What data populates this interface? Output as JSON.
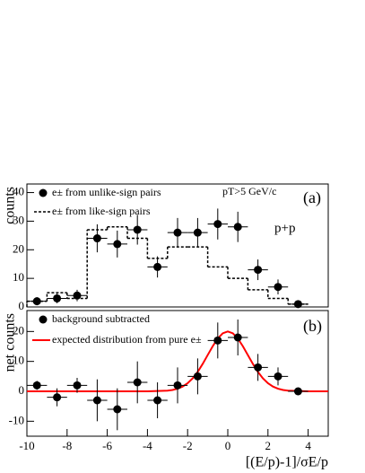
{
  "chart_data": [
    {
      "type": "scatter",
      "ylabel": "counts",
      "annotations": [
        "pT>5 GeV/c",
        "(a)",
        "p+p"
      ],
      "xlim": [
        -10,
        5
      ],
      "ylim": [
        0,
        43
      ],
      "yticks": [
        0,
        10,
        20,
        30,
        40
      ],
      "xerr": 0.5,
      "series": [
        {
          "name": "e± from unlike-sign pairs",
          "color": "#000000",
          "x": [
            -9.5,
            -8.5,
            -7.5,
            -6.5,
            -5.5,
            -4.5,
            -3.5,
            -2.5,
            -1.5,
            -0.5,
            0.5,
            1.5,
            2.5,
            3.5
          ],
          "values": [
            2,
            3,
            4,
            24,
            22,
            27,
            14,
            26,
            26,
            29,
            28,
            13,
            7,
            1
          ],
          "errors": [
            1.4,
            1.7,
            2,
            4.9,
            4.7,
            5.2,
            3.7,
            5.1,
            5.1,
            5.4,
            5.3,
            3.6,
            2.6,
            1
          ]
        }
      ],
      "histogram": {
        "name": "e± from like-sign pairs",
        "color": "#000000",
        "bins": [
          -10,
          -9,
          -8,
          -7,
          -6,
          -5,
          -4,
          -3,
          -2,
          -1,
          0,
          1,
          2,
          3,
          4
        ],
        "values": [
          2,
          5,
          3,
          27,
          28,
          24,
          17,
          21,
          21,
          14,
          10,
          6,
          3,
          1
        ]
      }
    },
    {
      "type": "scatter",
      "ylabel": "net counts",
      "xlabel": "[(E/p)-1]/σE/p",
      "annotations": [
        "(b)"
      ],
      "xlim": [
        -10,
        5
      ],
      "ylim": [
        -15,
        27
      ],
      "xticks": [
        -10,
        -8,
        -6,
        -4,
        -2,
        0,
        2,
        4
      ],
      "yticks": [
        -10,
        0,
        10,
        20
      ],
      "xerr": 0.5,
      "series": [
        {
          "name": "background subtracted",
          "color": "#000000",
          "x": [
            -9.5,
            -8.5,
            -7.5,
            -6.5,
            -5.5,
            -4.5,
            -3.5,
            -2.5,
            -1.5,
            -0.5,
            0.5,
            1.5,
            2.5,
            3.5
          ],
          "values": [
            2,
            -2,
            2,
            -3,
            -6,
            3,
            -3,
            2,
            5,
            17,
            18,
            8,
            5,
            0
          ],
          "errors": [
            1.5,
            3,
            2.5,
            7,
            7,
            7,
            6,
            6,
            6,
            6,
            6,
            4.5,
            3,
            1
          ]
        }
      ],
      "curve": {
        "name": "expected distribution from pure e±",
        "color": "#ff0000",
        "x": [
          -10,
          -4,
          -3,
          -2.75,
          -2.5,
          -2.25,
          -2,
          -1.75,
          -1.5,
          -1.25,
          -1,
          -0.75,
          -0.5,
          -0.25,
          0,
          0.25,
          0.5,
          0.75,
          1,
          1.25,
          1.5,
          1.75,
          2,
          2.25,
          2.5,
          2.75,
          3,
          4,
          5
        ],
        "values": [
          0,
          0,
          0.22,
          0.45,
          0.88,
          1.59,
          2.71,
          4.32,
          6.49,
          9.16,
          12.13,
          15.07,
          17.65,
          19.39,
          20,
          19.39,
          17.65,
          15.07,
          12.13,
          9.16,
          6.49,
          4.32,
          2.71,
          1.59,
          0.88,
          0.45,
          0.22,
          0,
          0
        ]
      }
    }
  ]
}
